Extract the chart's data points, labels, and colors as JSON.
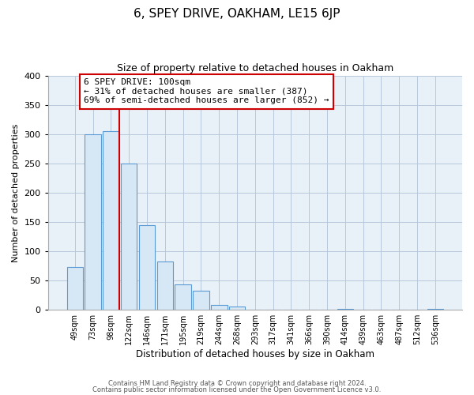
{
  "title": "6, SPEY DRIVE, OAKHAM, LE15 6JP",
  "subtitle": "Size of property relative to detached houses in Oakham",
  "xlabel": "Distribution of detached houses by size in Oakham",
  "ylabel": "Number of detached properties",
  "bar_labels": [
    "49sqm",
    "73sqm",
    "98sqm",
    "122sqm",
    "146sqm",
    "171sqm",
    "195sqm",
    "219sqm",
    "244sqm",
    "268sqm",
    "293sqm",
    "317sqm",
    "341sqm",
    "366sqm",
    "390sqm",
    "414sqm",
    "439sqm",
    "463sqm",
    "487sqm",
    "512sqm",
    "536sqm"
  ],
  "bar_values": [
    73,
    300,
    305,
    250,
    144,
    82,
    44,
    32,
    8,
    6,
    0,
    0,
    0,
    0,
    0,
    2,
    0,
    0,
    0,
    0,
    2
  ],
  "bar_color": "#d6e8f5",
  "bar_edge_color": "#5b9bd5",
  "vline_x_idx": 2,
  "vline_color": "#cc0000",
  "ylim": [
    0,
    400
  ],
  "yticks": [
    0,
    50,
    100,
    150,
    200,
    250,
    300,
    350,
    400
  ],
  "annotation_line1": "6 SPEY DRIVE: 100sqm",
  "annotation_line2": "← 31% of detached houses are smaller (387)",
  "annotation_line3": "69% of semi-detached houses are larger (852) →",
  "annotation_box_color": "#ffffff",
  "annotation_box_edge": "#cc0000",
  "footer1": "Contains HM Land Registry data © Crown copyright and database right 2024.",
  "footer2": "Contains public sector information licensed under the Open Government Licence v3.0.",
  "plot_bg_color": "#e8f0f8",
  "fig_bg_color": "#ffffff",
  "grid_color": "#b8c8dc"
}
